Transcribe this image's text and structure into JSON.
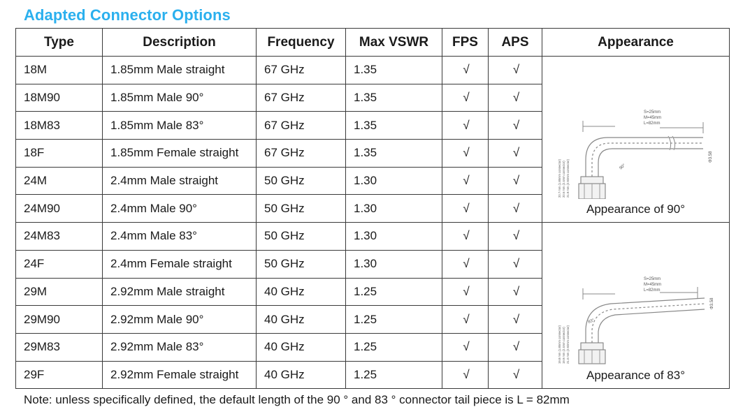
{
  "title": "Adapted Connector Options",
  "headers": [
    "Type",
    "Description",
    "Frequency",
    "Max VSWR",
    "FPS",
    "APS",
    "Appearance"
  ],
  "rows": [
    {
      "type": "18M",
      "desc": "1.85mm Male straight",
      "freq": "67 GHz",
      "vswr": "1.35",
      "fps": "√",
      "aps": "√"
    },
    {
      "type": "18M90",
      "desc": "1.85mm Male 90°",
      "freq": "67 GHz",
      "vswr": "1.35",
      "fps": "√",
      "aps": "√"
    },
    {
      "type": "18M83",
      "desc": "1.85mm Male 83°",
      "freq": "67 GHz",
      "vswr": "1.35",
      "fps": "√",
      "aps": "√"
    },
    {
      "type": "18F",
      "desc": "1.85mm Female straight",
      "freq": "67 GHz",
      "vswr": "1.35",
      "fps": "√",
      "aps": "√"
    },
    {
      "type": "24M",
      "desc": "2.4mm Male straight",
      "freq": "50 GHz",
      "vswr": "1.30",
      "fps": "√",
      "aps": "√"
    },
    {
      "type": "24M90",
      "desc": "2.4mm Male 90°",
      "freq": "50 GHz",
      "vswr": "1.30",
      "fps": "√",
      "aps": "√"
    },
    {
      "type": "24M83",
      "desc": "2.4mm Male 83°",
      "freq": "50 GHz",
      "vswr": "1.30",
      "fps": "√",
      "aps": "√"
    },
    {
      "type": "24F",
      "desc": "2.4mm Female straight",
      "freq": "50 GHz",
      "vswr": "1.30",
      "fps": "√",
      "aps": "√"
    },
    {
      "type": "29M",
      "desc": "2.92mm Male straight",
      "freq": "40 GHz",
      "vswr": "1.25",
      "fps": "√",
      "aps": "√"
    },
    {
      "type": "29M90",
      "desc": "2.92mm Male 90°",
      "freq": "40 GHz",
      "vswr": "1.25",
      "fps": "√",
      "aps": "√"
    },
    {
      "type": "29M83",
      "desc": "2.92mm Male 83°",
      "freq": "40 GHz",
      "vswr": "1.25",
      "fps": "√",
      "aps": "√"
    },
    {
      "type": "29F",
      "desc": "2.92mm Female straight",
      "freq": "40 GHz",
      "vswr": "1.25",
      "fps": "√",
      "aps": "√"
    }
  ],
  "appearance": {
    "caption_90": "Appearance of 90°",
    "caption_83": "Appearance of 83°",
    "dims_90": [
      "S=25mm",
      "M=45mm",
      "L=82mm"
    ],
    "dims_83": [
      "S=25mm",
      "M=45mm",
      "L=82mm"
    ],
    "angle_90": "90°",
    "angle_83": "83°",
    "dia": "Φ3.58",
    "side_90": [
      "20.7 mm (1.85mm connector)",
      "20.6 mm (2.4mm connector)",
      "21.9 mm (2.92mm connector)"
    ],
    "side_83": [
      "19.8 mm (1.85mm connector)",
      "19.9 mm (2.4mm connector)",
      "21.0 mm (2.92mm connector)"
    ]
  },
  "note": "Note: unless specifically defined, the default length of the 90 ° and 83 ° connector tail piece is L = 82mm"
}
